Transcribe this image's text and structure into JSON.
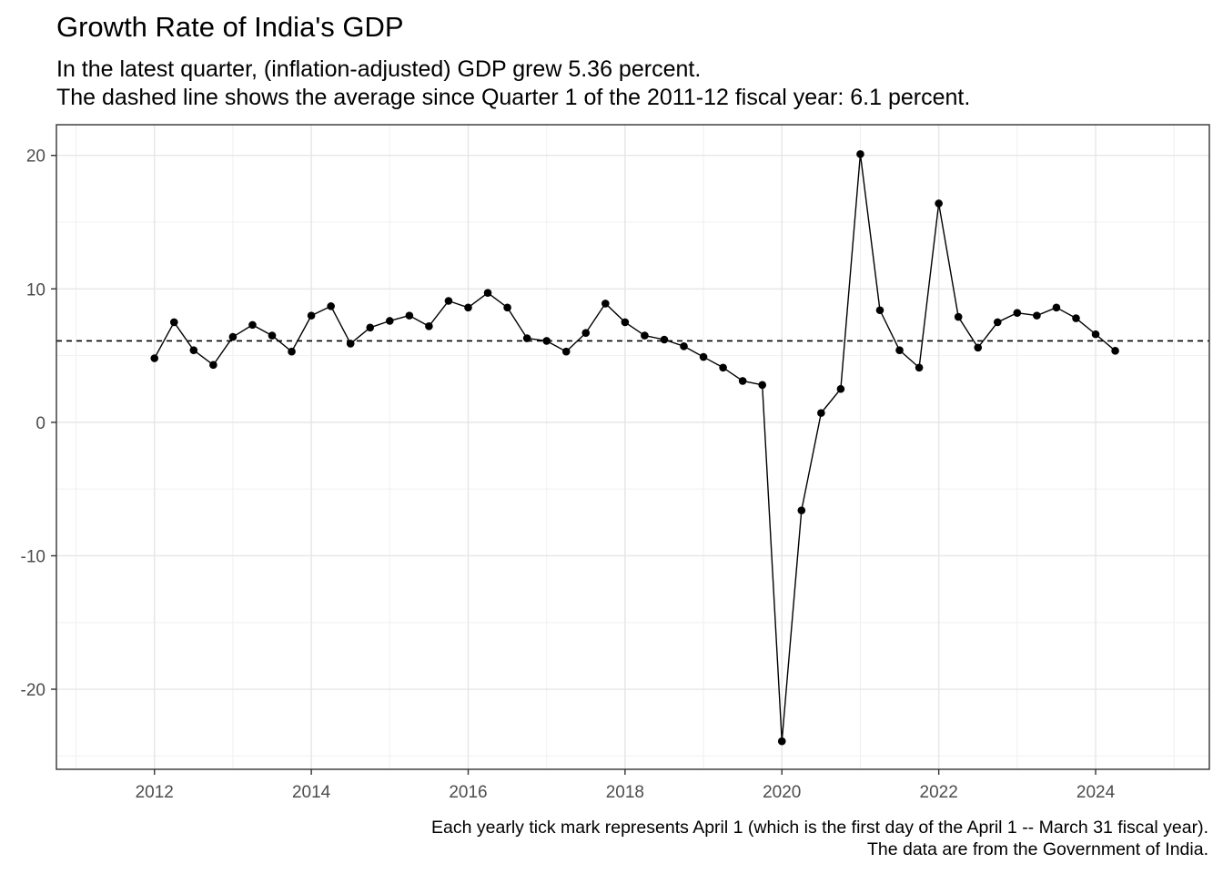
{
  "chart_data": {
    "type": "line",
    "title": "Growth Rate of India's GDP",
    "subtitle": [
      "In the latest quarter, (inflation-adjusted) GDP grew 5.36 percent.",
      "The dashed line shows the average since Quarter 1 of the 2011-12 fiscal year: 6.1 percent."
    ],
    "caption": [
      "Each yearly tick mark represents April 1 (which is the first day of the April 1 -- March 31 fiscal year).",
      "The data are from the Government of India."
    ],
    "xlabel": "",
    "ylabel": "",
    "x_ticks": [
      "2012",
      "2014",
      "2016",
      "2018",
      "2020",
      "2022",
      "2024"
    ],
    "y_ticks": [
      "-20",
      "-10",
      "0",
      "10",
      "20"
    ],
    "xlim": [
      2010.75,
      2025.45
    ],
    "ylim": [
      -26,
      22.3
    ],
    "grid": true,
    "average": 6.1,
    "series": [
      {
        "x": [
          2012.0,
          2012.25,
          2012.5,
          2012.75,
          2013.0,
          2013.25,
          2013.5,
          2013.75,
          2014.0,
          2014.25,
          2014.5,
          2014.75,
          2015.0,
          2015.25,
          2015.5,
          2015.75,
          2016.0,
          2016.25,
          2016.5,
          2016.75,
          2017.0,
          2017.25,
          2017.5,
          2017.75,
          2018.0,
          2018.25,
          2018.5,
          2018.75,
          2019.0,
          2019.25,
          2019.5,
          2019.75,
          2020.0,
          2020.25,
          2020.5,
          2020.75,
          2021.0,
          2021.25,
          2021.5,
          2021.75,
          2022.0,
          2022.25,
          2022.5,
          2022.75,
          2023.0,
          2023.25,
          2023.5,
          2023.75,
          2024.0,
          2024.25
        ],
        "values": [
          4.8,
          7.5,
          5.4,
          4.3,
          6.4,
          7.3,
          6.5,
          5.3,
          8.0,
          8.7,
          5.9,
          7.1,
          7.6,
          8.0,
          7.2,
          9.1,
          8.6,
          9.7,
          8.6,
          6.3,
          6.1,
          5.3,
          6.7,
          8.9,
          7.5,
          6.5,
          6.2,
          5.7,
          4.9,
          4.1,
          3.1,
          2.8,
          -23.9,
          -6.6,
          0.7,
          2.5,
          20.1,
          8.4,
          5.4,
          4.1,
          16.4,
          7.9,
          5.6,
          7.5,
          8.2,
          8.0,
          8.6,
          7.8,
          6.6,
          5.36
        ]
      }
    ]
  }
}
